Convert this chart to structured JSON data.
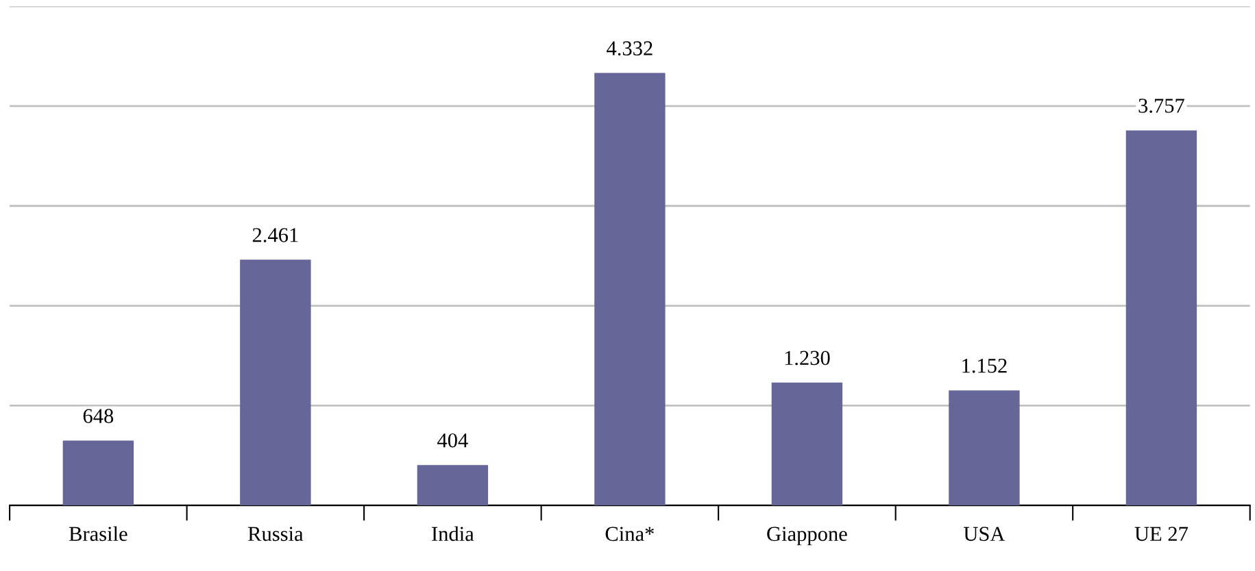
{
  "chart_data": {
    "type": "bar",
    "categories": [
      "Brasile",
      "Russia",
      "India",
      "Cina*",
      "Giappone",
      "USA",
      "UE 27"
    ],
    "values": [
      648,
      2461,
      404,
      4332,
      1230,
      1152,
      3757
    ],
    "value_labels": [
      "648",
      "2.461",
      "404",
      "4.332",
      "1.230",
      "1.152",
      "3.757"
    ],
    "color": "#666699",
    "ylim": [
      0,
      5000
    ],
    "yticks": [
      {
        "value": 0,
        "label": null
      },
      {
        "value": 1000,
        "label": null
      },
      {
        "value": 2000,
        "label": null
      },
      {
        "value": 3000,
        "label": null
      },
      {
        "value": 4000,
        "label": null
      },
      {
        "value": 5000,
        "label": null
      }
    ],
    "grid": "y",
    "tick_labels": "x"
  }
}
